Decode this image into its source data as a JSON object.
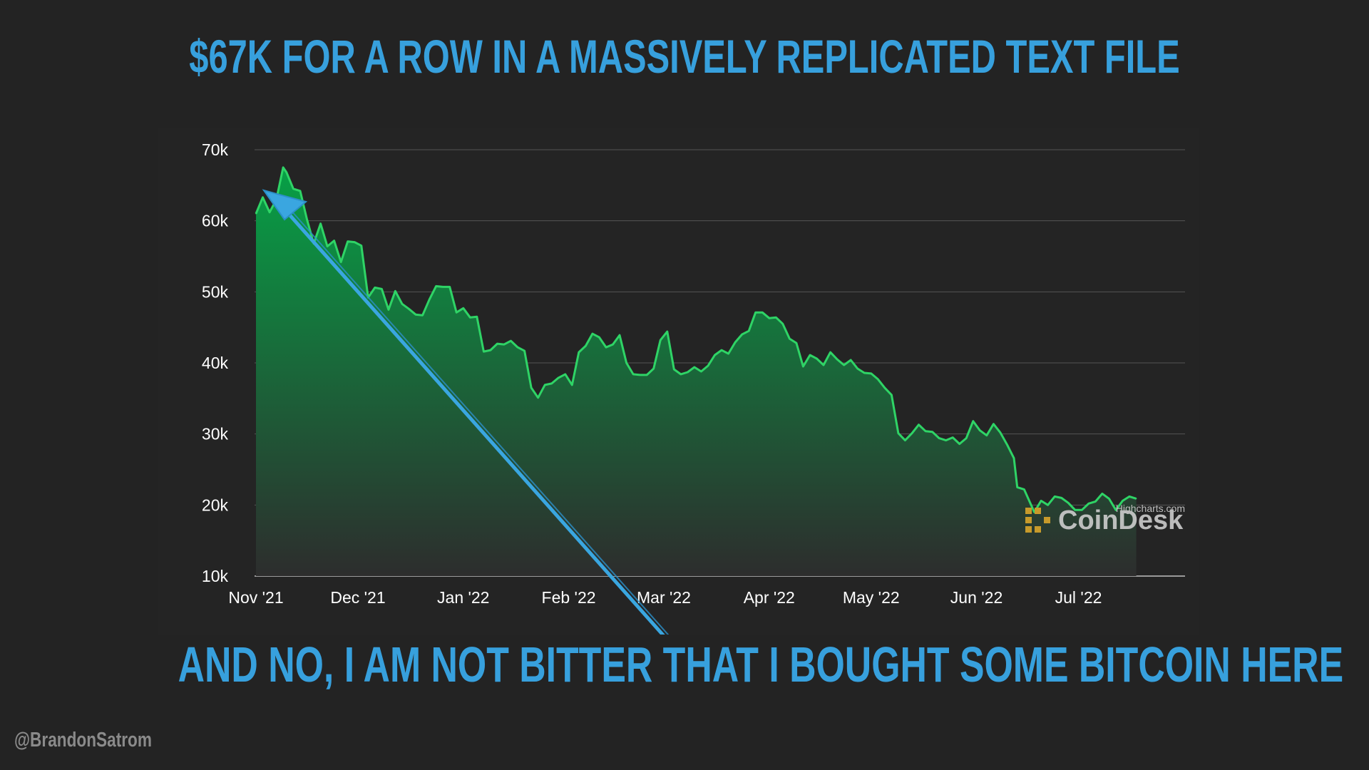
{
  "slide": {
    "title": "$67K FOR A ROW IN A MASSIVELY REPLICATED TEXT FILE",
    "caption": "AND NO, I AM NOT BITTER THAT I BOUGHT SOME BITCOIN HERE",
    "handle": "@BrandonSatrom"
  },
  "colors": {
    "background": "#232323",
    "headline": "#37a0dd",
    "line": "#2fd466",
    "area_top": "#07a046",
    "area_bottom": "#2d2d2d",
    "arrow": "#3aa6e0",
    "grid": "#555555"
  },
  "chart_data": {
    "type": "area",
    "title": "",
    "xlabel": "",
    "ylabel": "",
    "ylim": [
      10000,
      70000
    ],
    "y_ticks": [
      10000,
      20000,
      30000,
      40000,
      50000,
      60000,
      70000
    ],
    "y_tick_labels": [
      "10k",
      "20k",
      "30k",
      "40k",
      "50k",
      "60k",
      "70k"
    ],
    "x_tick_labels": [
      "Nov '21",
      "Dec '21",
      "Jan '22",
      "Feb '22",
      "Mar '22",
      "Apr '22",
      "May '22",
      "Jun '22",
      "Jul '22"
    ],
    "x_tick_dates": [
      "2021-11-01",
      "2021-12-01",
      "2022-01-01",
      "2022-02-01",
      "2022-03-01",
      "2022-04-01",
      "2022-05-01",
      "2022-06-01",
      "2022-07-01"
    ],
    "grid": true,
    "legend": "none",
    "watermark": "CoinDesk",
    "credit": "Highcharts.com",
    "annotation": "arrow pointing to the late-November 2021 price",
    "series": [
      {
        "values": [
          [
            "2021-11-01",
            61000
          ],
          [
            "2021-11-03",
            63300
          ],
          [
            "2021-11-05",
            61200
          ],
          [
            "2021-11-07",
            63000
          ],
          [
            "2021-11-09",
            67500
          ],
          [
            "2021-11-10",
            66800
          ],
          [
            "2021-11-12",
            64500
          ],
          [
            "2021-11-14",
            64200
          ],
          [
            "2021-11-16",
            60200
          ],
          [
            "2021-11-18",
            56800
          ],
          [
            "2021-11-20",
            59600
          ],
          [
            "2021-11-22",
            56400
          ],
          [
            "2021-11-24",
            57200
          ],
          [
            "2021-11-26",
            54200
          ],
          [
            "2021-11-28",
            57100
          ],
          [
            "2021-11-30",
            57000
          ],
          [
            "2021-12-02",
            56500
          ],
          [
            "2021-12-04",
            49200
          ],
          [
            "2021-12-06",
            50600
          ],
          [
            "2021-12-08",
            50400
          ],
          [
            "2021-12-10",
            47500
          ],
          [
            "2021-12-12",
            50100
          ],
          [
            "2021-12-14",
            48300
          ],
          [
            "2021-12-16",
            47600
          ],
          [
            "2021-12-18",
            46800
          ],
          [
            "2021-12-20",
            46700
          ],
          [
            "2021-12-22",
            48900
          ],
          [
            "2021-12-24",
            50800
          ],
          [
            "2021-12-26",
            50700
          ],
          [
            "2021-12-28",
            50700
          ],
          [
            "2021-12-30",
            47100
          ],
          [
            "2022-01-01",
            47700
          ],
          [
            "2022-01-03",
            46400
          ],
          [
            "2022-01-05",
            46500
          ],
          [
            "2022-01-07",
            41600
          ],
          [
            "2022-01-09",
            41800
          ],
          [
            "2022-01-11",
            42700
          ],
          [
            "2022-01-13",
            42600
          ],
          [
            "2022-01-15",
            43100
          ],
          [
            "2022-01-17",
            42200
          ],
          [
            "2022-01-19",
            41700
          ],
          [
            "2022-01-21",
            36500
          ],
          [
            "2022-01-23",
            35100
          ],
          [
            "2022-01-25",
            36900
          ],
          [
            "2022-01-27",
            37100
          ],
          [
            "2022-01-29",
            37900
          ],
          [
            "2022-01-31",
            38400
          ],
          [
            "2022-02-02",
            36900
          ],
          [
            "2022-02-04",
            41500
          ],
          [
            "2022-02-06",
            42400
          ],
          [
            "2022-02-08",
            44100
          ],
          [
            "2022-02-10",
            43600
          ],
          [
            "2022-02-12",
            42200
          ],
          [
            "2022-02-14",
            42600
          ],
          [
            "2022-02-16",
            43900
          ],
          [
            "2022-02-18",
            40000
          ],
          [
            "2022-02-20",
            38400
          ],
          [
            "2022-02-22",
            38300
          ],
          [
            "2022-02-24",
            38300
          ],
          [
            "2022-02-26",
            39200
          ],
          [
            "2022-02-28",
            43200
          ],
          [
            "2022-03-02",
            44400
          ],
          [
            "2022-03-04",
            39100
          ],
          [
            "2022-03-06",
            38400
          ],
          [
            "2022-03-08",
            38700
          ],
          [
            "2022-03-10",
            39400
          ],
          [
            "2022-03-12",
            38800
          ],
          [
            "2022-03-14",
            39600
          ],
          [
            "2022-03-16",
            41100
          ],
          [
            "2022-03-18",
            41800
          ],
          [
            "2022-03-20",
            41300
          ],
          [
            "2022-03-22",
            42900
          ],
          [
            "2022-03-24",
            44000
          ],
          [
            "2022-03-26",
            44500
          ],
          [
            "2022-03-28",
            47100
          ],
          [
            "2022-03-30",
            47100
          ],
          [
            "2022-04-01",
            46300
          ],
          [
            "2022-04-03",
            46400
          ],
          [
            "2022-04-05",
            45500
          ],
          [
            "2022-04-07",
            43400
          ],
          [
            "2022-04-09",
            42800
          ],
          [
            "2022-04-11",
            39500
          ],
          [
            "2022-04-13",
            41100
          ],
          [
            "2022-04-15",
            40600
          ],
          [
            "2022-04-17",
            39700
          ],
          [
            "2022-04-19",
            41500
          ],
          [
            "2022-04-21",
            40500
          ],
          [
            "2022-04-23",
            39700
          ],
          [
            "2022-04-25",
            40400
          ],
          [
            "2022-04-27",
            39200
          ],
          [
            "2022-04-29",
            38600
          ],
          [
            "2022-05-01",
            38500
          ],
          [
            "2022-05-03",
            37700
          ],
          [
            "2022-05-05",
            36500
          ],
          [
            "2022-05-07",
            35500
          ],
          [
            "2022-05-09",
            30100
          ],
          [
            "2022-05-11",
            29100
          ],
          [
            "2022-05-13",
            30100
          ],
          [
            "2022-05-15",
            31300
          ],
          [
            "2022-05-17",
            30400
          ],
          [
            "2022-05-19",
            30300
          ],
          [
            "2022-05-21",
            29400
          ],
          [
            "2022-05-23",
            29100
          ],
          [
            "2022-05-25",
            29500
          ],
          [
            "2022-05-27",
            28600
          ],
          [
            "2022-05-29",
            29400
          ],
          [
            "2022-05-31",
            31800
          ],
          [
            "2022-06-02",
            30500
          ],
          [
            "2022-06-04",
            29800
          ],
          [
            "2022-06-06",
            31400
          ],
          [
            "2022-06-08",
            30200
          ],
          [
            "2022-06-10",
            28500
          ],
          [
            "2022-06-12",
            26600
          ],
          [
            "2022-06-13",
            22500
          ],
          [
            "2022-06-15",
            22200
          ],
          [
            "2022-06-18",
            19000
          ],
          [
            "2022-06-20",
            20600
          ],
          [
            "2022-06-22",
            20000
          ],
          [
            "2022-06-24",
            21200
          ],
          [
            "2022-06-26",
            21000
          ],
          [
            "2022-06-28",
            20300
          ],
          [
            "2022-06-30",
            19300
          ],
          [
            "2022-07-02",
            19300
          ],
          [
            "2022-07-04",
            20200
          ],
          [
            "2022-07-06",
            20500
          ],
          [
            "2022-07-08",
            21600
          ],
          [
            "2022-07-10",
            20900
          ],
          [
            "2022-07-12",
            19300
          ],
          [
            "2022-07-14",
            20600
          ],
          [
            "2022-07-16",
            21200
          ],
          [
            "2022-07-18",
            20900
          ]
        ]
      }
    ]
  }
}
